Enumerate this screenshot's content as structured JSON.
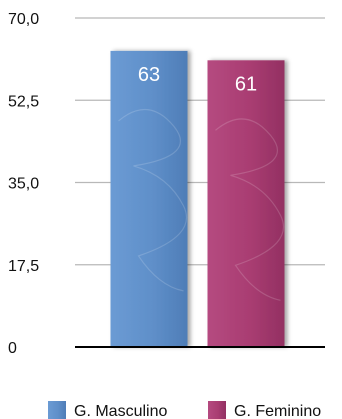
{
  "chart_data": {
    "type": "bar",
    "categories": [
      "G. Masculino",
      "G. Feminino"
    ],
    "values": [
      63,
      61
    ],
    "ylim": [
      0,
      70
    ],
    "yticks": [
      "0",
      "17,5",
      "35,0",
      "52,5",
      "70,0"
    ],
    "grid": true,
    "legend": "bottom",
    "colors": [
      "#5f8fc9",
      "#a93d72"
    ]
  }
}
